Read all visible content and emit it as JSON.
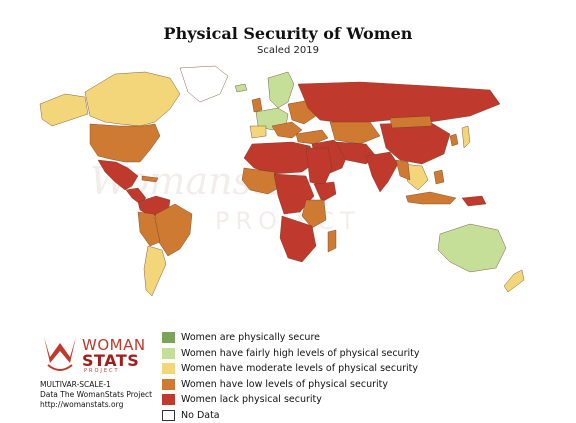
{
  "title": "Physical Security of Women",
  "subtitle": "Scaled 2019",
  "colors": {
    "secure": "#7da35a",
    "fairly_high": "#c5df98",
    "moderate": "#f4d67a",
    "low": "#cf7a32",
    "lack": "#bf3a2c",
    "no_data": "#ffffff",
    "border": "#7a4a2a"
  },
  "legend": [
    {
      "label": "Women are physically secure",
      "color": "#7da35a"
    },
    {
      "label": "Women have fairly high levels of physical security",
      "color": "#c5df98"
    },
    {
      "label": "Women have moderate levels of physical security",
      "color": "#f4d67a"
    },
    {
      "label": "Women have low levels of physical security",
      "color": "#cf7a32"
    },
    {
      "label": "Women lack physical security",
      "color": "#bf3a2c"
    },
    {
      "label": "No Data",
      "color": "#ffffff"
    }
  ],
  "logo": {
    "line1": "WOMAN",
    "line2": "STATS",
    "line3": "PROJECT"
  },
  "footer": {
    "code": "MULTIVAR-SCALE-1",
    "source": "Data The WomanStats Project",
    "url": "http://womanstats.org"
  },
  "watermark": "WomanStats Project"
}
